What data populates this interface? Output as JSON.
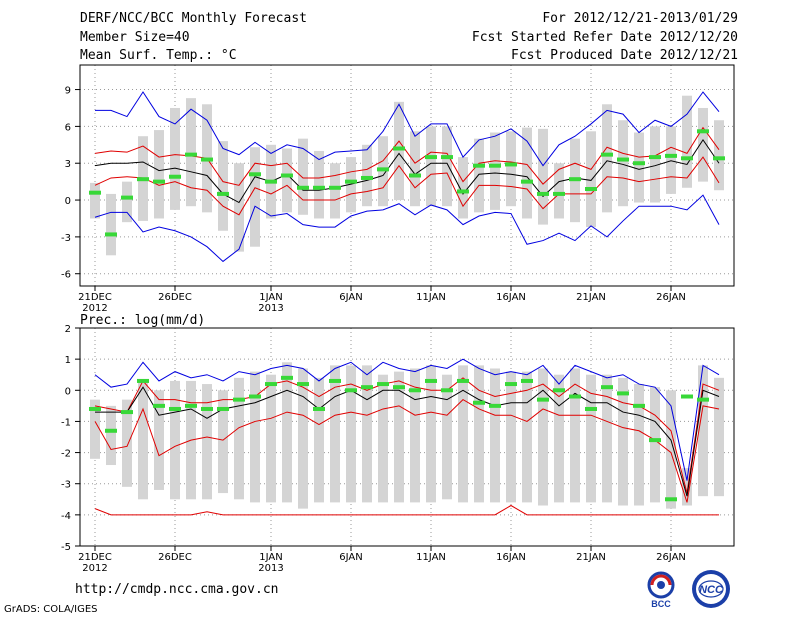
{
  "header": {
    "title": "DERF/NCC/BCC Monthly Forecast",
    "member_size": "Member Size=40",
    "variable": "Mean Surf. Temp.: °C",
    "fcst_range": "For 2012/12/21-2013/01/29",
    "fcst_started": "Fcst Started Refer Date 2012/12/20",
    "fcst_produced": "Fcst Produced Date 2012/12/21"
  },
  "footer": {
    "url": "http://cmdp.ncc.cma.gov.cn",
    "credit": "GrADS: COLA/IGES",
    "logo_bcc": "BCC",
    "logo_ncc": "NCC"
  },
  "colors": {
    "frame": "#000000",
    "grid": "#9a9a9a",
    "box": "#d4d4d4",
    "envelope": "#0000e0",
    "spread": "#e00000",
    "median": "#000000",
    "observation": "#38d838"
  },
  "chart_data": [
    {
      "type": "box",
      "title": "Mean Surf. Temp.: °C",
      "days": 40,
      "ylim": [
        -7,
        11
      ],
      "yticks": [
        -6,
        -3,
        0,
        3,
        6,
        9
      ],
      "grid": "dotted",
      "x_ticks": [
        {
          "day": 1,
          "label": "21DEC",
          "year": "2012"
        },
        {
          "day": 6,
          "label": "26DEC",
          "year": ""
        },
        {
          "day": 12,
          "label": "1JAN",
          "year": "2013"
        },
        {
          "day": 17,
          "label": "6JAN",
          "year": ""
        },
        {
          "day": 22,
          "label": "11JAN",
          "year": ""
        },
        {
          "day": 27,
          "label": "16JAN",
          "year": ""
        },
        {
          "day": 32,
          "label": "21JAN",
          "year": ""
        },
        {
          "day": 37,
          "label": "26JAN",
          "year": ""
        }
      ],
      "box_low": [
        -1.5,
        -4.5,
        -1.8,
        -1.7,
        -1.5,
        -0.8,
        -0.5,
        -1.0,
        -2.5,
        -4.2,
        -3.8,
        -1.5,
        -1.0,
        -1.2,
        -1.5,
        -1.5,
        -1.0,
        -0.5,
        -0.5,
        0.0,
        -0.5,
        -0.5,
        -0.5,
        -1.5,
        -1.0,
        -0.8,
        -0.5,
        -1.5,
        -2.0,
        -1.5,
        -1.8,
        -2.2,
        -1.0,
        -0.5,
        -0.2,
        -0.2,
        0.5,
        1.0,
        1.5,
        0.8
      ],
      "box_high": [
        1.4,
        0.5,
        1.5,
        5.2,
        5.7,
        7.5,
        8.3,
        7.8,
        4.8,
        3.0,
        4.3,
        4.5,
        4.2,
        5.0,
        4.0,
        3.0,
        3.5,
        4.5,
        5.2,
        8.0,
        5.6,
        6.0,
        6.0,
        3.5,
        5.0,
        5.5,
        5.6,
        5.9,
        5.8,
        3.0,
        5.0,
        5.6,
        7.8,
        6.5,
        5.5,
        6.0,
        6.0,
        8.5,
        7.5,
        6.5
      ],
      "max": [
        7.3,
        7.3,
        6.8,
        8.8,
        6.8,
        6.2,
        7.4,
        6.5,
        4.2,
        3.7,
        4.7,
        3.8,
        4.5,
        4.2,
        3.3,
        3.9,
        4.0,
        4.1,
        5.6,
        7.8,
        5.2,
        6.2,
        6.2,
        3.5,
        4.9,
        5.2,
        5.8,
        4.8,
        2.8,
        4.5,
        5.2,
        6.2,
        7.3,
        7.0,
        5.5,
        6.5,
        6.0,
        7.0,
        8.8,
        7.2
      ],
      "upper": [
        3.8,
        4.0,
        3.9,
        4.4,
        3.5,
        3.7,
        3.6,
        3.4,
        1.5,
        1.2,
        3.0,
        2.8,
        3.0,
        1.8,
        1.8,
        2.0,
        2.3,
        2.5,
        3.2,
        4.8,
        3.0,
        3.9,
        3.8,
        1.5,
        3.0,
        3.2,
        3.1,
        2.9,
        1.3,
        2.5,
        3.0,
        2.5,
        4.3,
        3.8,
        3.5,
        3.6,
        4.3,
        3.8,
        5.9,
        4.1
      ],
      "median": [
        2.8,
        3.0,
        3.0,
        3.1,
        2.4,
        2.6,
        2.3,
        2.0,
        0.5,
        -0.2,
        1.9,
        1.5,
        2.1,
        0.8,
        0.8,
        1.0,
        1.3,
        1.6,
        2.0,
        3.8,
        2.1,
        3.0,
        3.0,
        0.5,
        2.1,
        2.2,
        2.1,
        1.9,
        0.3,
        1.5,
        1.8,
        1.6,
        3.2,
        2.9,
        2.5,
        2.8,
        3.2,
        2.9,
        4.9,
        3.0
      ],
      "lower": [
        1.2,
        1.8,
        1.9,
        1.8,
        1.2,
        1.5,
        1.0,
        0.8,
        -0.5,
        -1.2,
        1.0,
        0.5,
        1.2,
        0.0,
        0.0,
        0.0,
        0.5,
        0.7,
        1.0,
        2.8,
        1.0,
        2.1,
        2.2,
        -0.5,
        1.2,
        1.2,
        1.1,
        0.9,
        -0.7,
        0.5,
        0.5,
        0.5,
        1.9,
        1.8,
        1.5,
        1.7,
        1.9,
        1.8,
        3.5,
        1.4
      ],
      "min": [
        -1.4,
        -1.0,
        -1.0,
        -2.6,
        -2.2,
        -2.5,
        -3.0,
        -3.8,
        -5.0,
        -4.0,
        -0.5,
        -1.3,
        -1.1,
        -2.0,
        -2.2,
        -2.2,
        -1.3,
        -0.9,
        -0.8,
        -0.3,
        -1.2,
        -0.4,
        -0.8,
        -2.0,
        -1.3,
        -1.0,
        -1.1,
        -3.6,
        -3.3,
        -2.7,
        -3.3,
        -2.1,
        -3.0,
        -1.7,
        -0.5,
        -0.5,
        -0.5,
        -0.8,
        0.4,
        -2.0
      ],
      "observation": [
        0.6,
        -2.8,
        0.2,
        1.7,
        1.5,
        1.9,
        3.7,
        3.3,
        0.5,
        null,
        2.1,
        1.5,
        2.0,
        1.0,
        1.0,
        1.0,
        1.5,
        1.8,
        2.5,
        4.2,
        2.0,
        3.5,
        3.5,
        0.7,
        2.8,
        2.8,
        2.9,
        1.5,
        0.5,
        0.5,
        1.7,
        0.9,
        3.7,
        3.3,
        3.0,
        3.5,
        3.6,
        3.4,
        5.6,
        3.4
      ]
    },
    {
      "type": "box",
      "title": "Prec.: log(mm/d)",
      "days": 40,
      "ylim": [
        -5,
        2
      ],
      "yticks": [
        -5,
        -4,
        -3,
        -2,
        -1,
        0,
        1,
        2
      ],
      "grid": "dotted",
      "x_ticks": [
        {
          "day": 1,
          "label": "21DEC",
          "year": "2012"
        },
        {
          "day": 6,
          "label": "26DEC",
          "year": ""
        },
        {
          "day": 12,
          "label": "1JAN",
          "year": "2013"
        },
        {
          "day": 17,
          "label": "6JAN",
          "year": ""
        },
        {
          "day": 22,
          "label": "11JAN",
          "year": ""
        },
        {
          "day": 27,
          "label": "16JAN",
          "year": ""
        },
        {
          "day": 32,
          "label": "21JAN",
          "year": ""
        },
        {
          "day": 37,
          "label": "26JAN",
          "year": ""
        }
      ],
      "box_low": [
        -2.2,
        -2.4,
        -3.1,
        -3.5,
        -3.2,
        -3.5,
        -3.5,
        -3.5,
        -3.3,
        -3.5,
        -3.6,
        -3.6,
        -3.6,
        -3.8,
        -3.6,
        -3.6,
        -3.6,
        -3.6,
        -3.6,
        -3.6,
        -3.6,
        -3.6,
        -3.5,
        -3.6,
        -3.6,
        -3.6,
        -3.6,
        -3.6,
        -3.7,
        -3.6,
        -3.6,
        -3.6,
        -3.6,
        -3.7,
        -3.7,
        -3.6,
        -3.8,
        -3.7,
        -3.4,
        -3.4
      ],
      "box_high": [
        -0.3,
        -0.5,
        -0.3,
        0.3,
        0.0,
        0.3,
        0.3,
        0.2,
        0.0,
        0.4,
        0.6,
        0.5,
        0.9,
        0.7,
        0.4,
        0.8,
        0.8,
        0.8,
        0.5,
        0.6,
        0.7,
        0.8,
        0.5,
        0.8,
        0.8,
        0.7,
        0.6,
        0.6,
        0.7,
        0.5,
        0.7,
        0.5,
        0.5,
        0.4,
        0.2,
        0.1,
        0.0,
        -2.5,
        0.8,
        0.4
      ],
      "max": [
        0.5,
        0.1,
        0.2,
        0.9,
        0.3,
        0.6,
        0.4,
        0.5,
        0.3,
        0.6,
        0.5,
        0.7,
        0.8,
        0.7,
        0.3,
        0.7,
        0.9,
        0.5,
        0.9,
        0.7,
        0.6,
        0.8,
        0.7,
        1.0,
        0.7,
        0.5,
        0.6,
        0.5,
        0.8,
        0.2,
        0.8,
        0.6,
        0.4,
        0.5,
        0.2,
        0.1,
        -0.5,
        -2.9,
        0.8,
        0.5
      ],
      "upper": [
        -0.5,
        -0.6,
        -0.7,
        0.3,
        -0.3,
        -0.3,
        -0.4,
        -0.4,
        -0.3,
        -0.3,
        -0.2,
        0.2,
        0.3,
        0.1,
        -0.2,
        0.1,
        0.2,
        0.0,
        0.2,
        0.3,
        0.1,
        0.0,
        0.0,
        0.4,
        0.0,
        -0.2,
        -0.1,
        0.0,
        0.2,
        -0.2,
        0.2,
        -0.1,
        -0.2,
        -0.4,
        -0.5,
        -0.8,
        -1.3,
        -3.3,
        0.2,
        0.0
      ],
      "median": [
        -0.7,
        -0.7,
        -0.7,
        0.1,
        -0.8,
        -0.7,
        -0.6,
        -0.9,
        -0.6,
        -0.5,
        -0.4,
        -0.2,
        0.0,
        -0.2,
        -0.6,
        -0.2,
        0.0,
        -0.3,
        0.0,
        0.0,
        -0.3,
        -0.2,
        -0.3,
        0.0,
        -0.3,
        -0.5,
        -0.4,
        -0.4,
        0.0,
        -0.5,
        -0.1,
        -0.4,
        -0.4,
        -0.7,
        -0.8,
        -1.0,
        -1.6,
        -3.4,
        0.0,
        -0.2
      ],
      "lower": [
        -1.0,
        -1.9,
        -1.8,
        -0.6,
        -2.1,
        -1.8,
        -1.6,
        -1.5,
        -1.6,
        -1.2,
        -1.0,
        -0.9,
        -0.7,
        -0.8,
        -1.1,
        -0.8,
        -0.7,
        -0.8,
        -0.6,
        -0.5,
        -0.8,
        -0.7,
        -0.8,
        -0.3,
        -0.6,
        -0.8,
        -0.8,
        -1.0,
        -0.6,
        -0.8,
        -0.8,
        -0.8,
        -1.0,
        -1.2,
        -1.3,
        -1.6,
        -2.0,
        -3.6,
        -0.5,
        -0.6
      ],
      "min": [
        -3.8,
        -4.0,
        -4.0,
        -4.0,
        -4.0,
        -4.0,
        -4.0,
        -3.9,
        -4.0,
        -4.0,
        -4.0,
        -4.0,
        -4.0,
        -4.0,
        -4.0,
        -4.0,
        -4.0,
        -4.0,
        -4.0,
        -4.0,
        -4.0,
        -4.0,
        -4.0,
        -4.0,
        -4.0,
        -4.0,
        -3.7,
        -4.0,
        -4.0,
        -4.0,
        -4.0,
        -4.0,
        -4.0,
        -4.0,
        -4.0,
        -4.0,
        -4.0,
        -4.0,
        -4.0,
        -4.0
      ],
      "observation": [
        -0.6,
        -1.3,
        -0.7,
        0.3,
        -0.5,
        -0.6,
        -0.5,
        -0.6,
        -0.6,
        -0.3,
        -0.2,
        0.2,
        0.4,
        0.2,
        -0.6,
        0.3,
        0.0,
        0.1,
        0.2,
        0.1,
        0.0,
        0.3,
        0.0,
        0.3,
        -0.4,
        -0.5,
        0.2,
        0.3,
        -0.3,
        0.0,
        -0.2,
        -0.6,
        0.1,
        -0.1,
        -0.5,
        -1.6,
        -3.5,
        -0.2,
        -0.3,
        null
      ]
    }
  ]
}
